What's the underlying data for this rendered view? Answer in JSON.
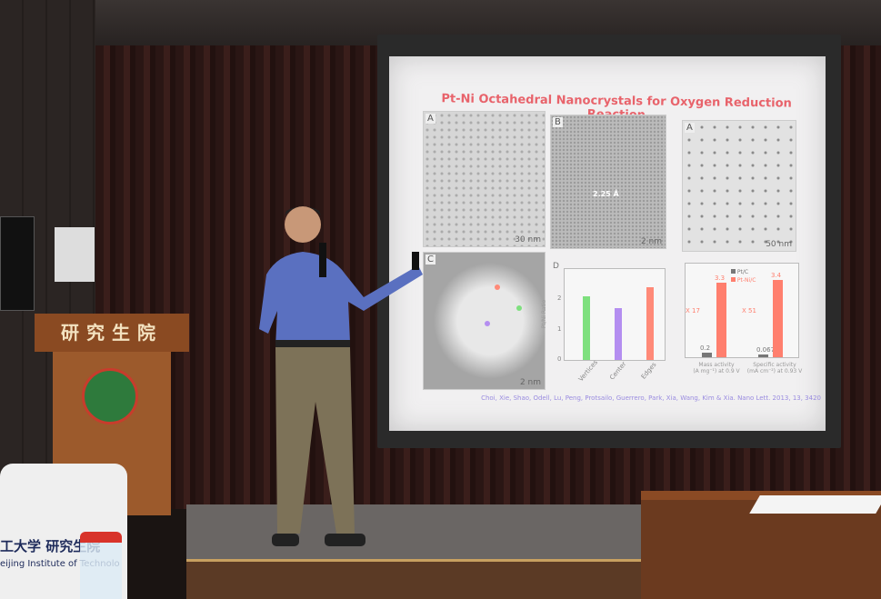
{
  "slide": {
    "title": "Pt-Ni Octahedral Nanocrystals for Oxygen Reduction Reaction",
    "panels": [
      {
        "label": "A",
        "scale": "30 nm"
      },
      {
        "label": "B",
        "scale": "2 nm",
        "annotation": "2.25 Å"
      },
      {
        "label": "A",
        "scale": "50 nm"
      },
      {
        "label": "C",
        "scale": "2 nm"
      }
    ],
    "chart_d": {
      "label": "D",
      "ylabel": "Pt/Ni Ratio",
      "yticks": [
        "0",
        "1",
        "2"
      ],
      "categories": [
        "Vertices",
        "Center",
        "Edges"
      ],
      "values": [
        2.1,
        1.7,
        2.4
      ],
      "colors": [
        "#7ee07e",
        "#b48ef0",
        "#ff8a78"
      ]
    },
    "chart_activity": {
      "legend": [
        "Pt/C",
        "Pt-Ni/C"
      ],
      "colors": [
        "#777777",
        "#ff7f6e"
      ],
      "groups": [
        {
          "label": "Mass activity",
          "sublabel": "(A mg⁻¹) at 0.9 V",
          "values": [
            0.2,
            3.3
          ],
          "value_labels": [
            "0.2",
            "3.3"
          ],
          "factor": "X 17"
        },
        {
          "label": "Specific activity",
          "sublabel": "(mA cm⁻²) at 0.93 V",
          "values": [
            0.067,
            3.4
          ],
          "value_labels": [
            "0.067",
            "3.4"
          ],
          "factor": "X 51"
        }
      ]
    },
    "citation": "Choi, Xie, Shao, Odell, Lu, Peng, Protsailo, Guerrero, Park, Xia, Wang, Kim & Xia. Nano Lett. 2013, 13, 3420"
  },
  "podium_sign": "研究生院",
  "chair_cover": {
    "text": "工大学 研究生院",
    "subtext": "eijing Institute of Technolo"
  }
}
